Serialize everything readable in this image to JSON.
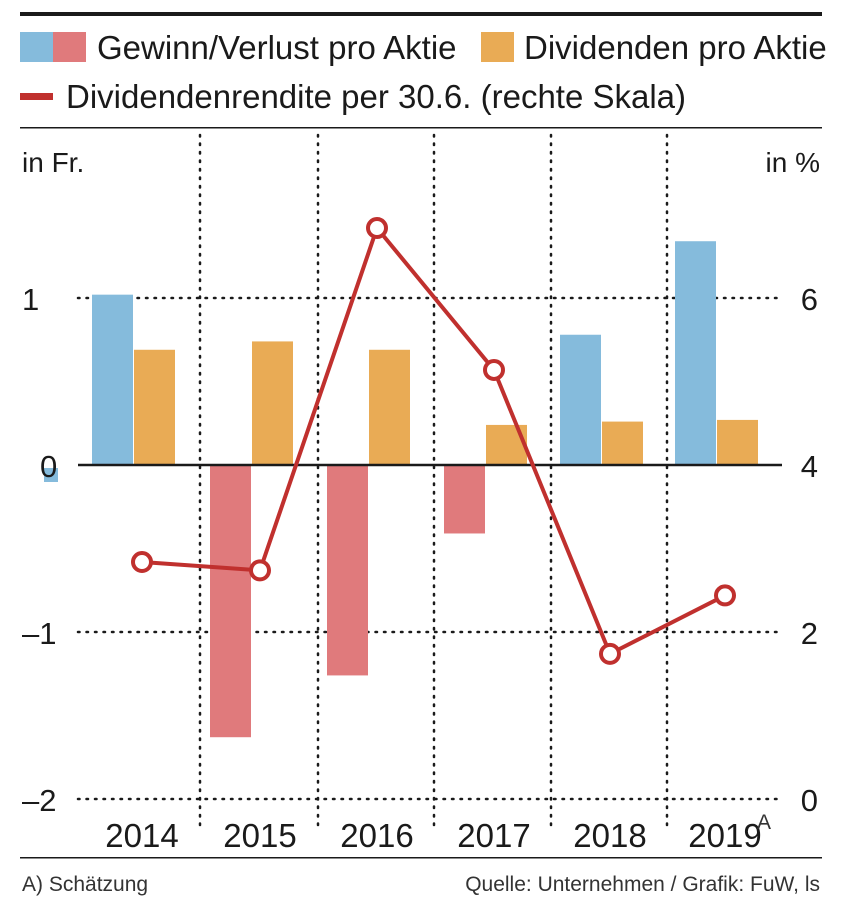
{
  "colors": {
    "positive": "#85bbdc",
    "negative": "#e07a7c",
    "dividend": "#e9ab55",
    "yield_line": "#c0302e",
    "grid": "#1a1a1a"
  },
  "legend": {
    "eps_label": "Gewinn/Verlust pro Aktie",
    "dividend_label": "Dividenden pro Aktie",
    "yield_label": "Dividendenrendite per 30.6. (rechte Skala)"
  },
  "axes": {
    "left_unit": "in Fr.",
    "right_unit": "in %",
    "left_ticks": [
      "1",
      "0",
      "–1",
      "–2"
    ],
    "right_ticks": [
      "6",
      "4",
      "2",
      "0"
    ],
    "year_suffix": "A"
  },
  "footer": {
    "note": "A) Schätzung",
    "source": "Quelle: Unternehmen / Grafik: FuW, ls"
  },
  "chart_data": {
    "type": "bar",
    "categories": [
      "2014",
      "2015",
      "2016",
      "2017",
      "2018",
      "2019"
    ],
    "series": [
      {
        "name": "Gewinn/Verlust pro Aktie",
        "axis": "left",
        "values": [
          1.02,
          -1.63,
          -1.26,
          -0.41,
          0.78,
          1.34
        ]
      },
      {
        "name": "Dividenden pro Aktie",
        "axis": "left",
        "values": [
          0.69,
          0.74,
          0.69,
          0.24,
          0.26,
          0.27
        ]
      },
      {
        "name": "Dividendenrendite per 30.6. (rechte Skala)",
        "axis": "right",
        "type": "line",
        "values": [
          2.85,
          2.75,
          6.85,
          5.15,
          1.75,
          2.45
        ]
      }
    ],
    "y_left": {
      "label": "in Fr.",
      "range": [
        -2,
        2
      ],
      "ticks": [
        1,
        0,
        -1,
        -2
      ]
    },
    "y_right": {
      "label": "in %",
      "range": [
        0,
        8
      ],
      "ticks": [
        6,
        4,
        2,
        0
      ]
    },
    "grid": true,
    "legend": "top"
  }
}
